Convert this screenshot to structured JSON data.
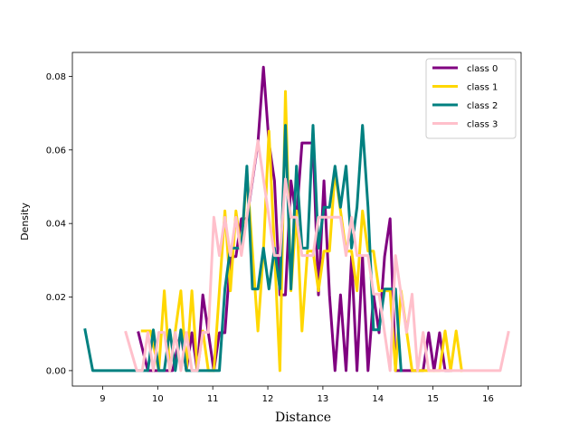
{
  "chart_data": {
    "type": "line",
    "title": "",
    "xlabel": "Distance",
    "ylabel": "Density",
    "xlim": [
      8.45,
      16.6
    ],
    "ylim": [
      -0.0042,
      0.0865
    ],
    "xticks": [
      9,
      10,
      11,
      12,
      13,
      14,
      15,
      16
    ],
    "xtick_labels": [
      "9",
      "10",
      "11",
      "12",
      "13",
      "14",
      "15",
      "16"
    ],
    "yticks": [
      0.0,
      0.02,
      0.04,
      0.06,
      0.08
    ],
    "ytick_labels": [
      "0.00",
      "0.02",
      "0.04",
      "0.06",
      "0.08"
    ],
    "grid": false,
    "legend_position": "top-right",
    "series": [
      {
        "name": "class 0",
        "color": "#800080",
        "x": [
          9.65,
          9.82,
          9.97,
          10.12,
          10.27,
          10.42,
          10.52,
          10.62,
          10.72,
          10.82,
          10.92,
          11.02,
          11.12,
          11.22,
          11.32,
          11.42,
          11.52,
          11.62,
          11.72,
          11.82,
          11.92,
          12.02,
          12.12,
          12.22,
          12.32,
          12.42,
          12.52,
          12.62,
          12.72,
          12.82,
          12.92,
          13.02,
          13.12,
          13.22,
          13.32,
          13.42,
          13.52,
          13.62,
          13.72,
          13.82,
          13.92,
          14.02,
          14.12,
          14.22,
          14.32,
          14.42,
          14.52,
          14.62,
          14.72,
          14.82,
          14.92,
          15.02,
          15.12,
          15.22,
          15.32
        ],
        "y": [
          0.0103,
          0.0,
          0.0,
          0.0,
          0.0,
          0.0103,
          0.0,
          0.0103,
          0.0,
          0.0206,
          0.0103,
          0.0,
          0.0103,
          0.0103,
          0.031,
          0.031,
          0.0413,
          0.0413,
          0.0516,
          0.0619,
          0.0825,
          0.0619,
          0.0516,
          0.0206,
          0.0206,
          0.0516,
          0.0413,
          0.0619,
          0.0619,
          0.0619,
          0.0206,
          0.0516,
          0.0206,
          0.0,
          0.0206,
          0.0,
          0.031,
          0.0,
          0.031,
          0.0,
          0.0206,
          0.0103,
          0.031,
          0.0413,
          0.0,
          0.0,
          0.0,
          0.0,
          0.0,
          0.0,
          0.0103,
          0.0,
          0.0103,
          0.0,
          0.0
        ]
      },
      {
        "name": "class 1",
        "color": "#FFD700",
        "x": [
          9.72,
          9.87,
          10.02,
          10.12,
          10.22,
          10.32,
          10.42,
          10.52,
          10.62,
          10.72,
          10.82,
          10.92,
          11.02,
          11.12,
          11.22,
          11.32,
          11.42,
          11.52,
          11.62,
          11.72,
          11.82,
          11.92,
          12.02,
          12.12,
          12.22,
          12.32,
          12.42,
          12.52,
          12.62,
          12.72,
          12.82,
          12.92,
          13.02,
          13.12,
          13.22,
          13.32,
          13.42,
          13.52,
          13.62,
          13.72,
          13.82,
          13.92,
          14.02,
          14.12,
          14.22,
          14.32,
          14.42,
          14.52,
          14.62,
          14.72,
          14.82,
          14.92,
          15.02,
          15.12,
          15.22,
          15.32,
          15.42,
          15.52
        ],
        "y": [
          0.0108,
          0.0108,
          0.0,
          0.0217,
          0.0,
          0.0108,
          0.0217,
          0.0,
          0.0217,
          0.0,
          0.0108,
          0.0,
          0.0,
          0.0217,
          0.0434,
          0.0217,
          0.0434,
          0.0325,
          0.0542,
          0.0325,
          0.0108,
          0.0325,
          0.0651,
          0.0325,
          0.0,
          0.0759,
          0.0217,
          0.0434,
          0.0108,
          0.0325,
          0.0325,
          0.0217,
          0.0325,
          0.0325,
          0.0542,
          0.0434,
          0.0325,
          0.0325,
          0.0217,
          0.0434,
          0.0325,
          0.0325,
          0.0217,
          0.0217,
          0.0217,
          0.0,
          0.0217,
          0.0108,
          0.0,
          0.0,
          0.0,
          0.0,
          0.0,
          0.0,
          0.0108,
          0.0,
          0.0108,
          0.0
        ]
      },
      {
        "name": "class 2",
        "color": "#008080",
        "x": [
          8.68,
          8.82,
          9.02,
          9.22,
          9.42,
          9.62,
          9.82,
          9.92,
          10.02,
          10.12,
          10.22,
          10.32,
          10.42,
          10.52,
          10.62,
          10.72,
          10.82,
          10.92,
          11.02,
          11.12,
          11.22,
          11.32,
          11.42,
          11.52,
          11.62,
          11.72,
          11.82,
          11.92,
          12.02,
          12.12,
          12.22,
          12.32,
          12.42,
          12.52,
          12.62,
          12.72,
          12.82,
          12.92,
          13.02,
          13.12,
          13.22,
          13.32,
          13.42,
          13.52,
          13.62,
          13.72,
          13.82,
          13.92,
          14.02,
          14.12,
          14.22,
          14.32,
          14.42
        ],
        "y": [
          0.0111,
          0.0,
          0.0,
          0.0,
          0.0,
          0.0,
          0.0,
          0.0111,
          0.0,
          0.0,
          0.0111,
          0.0,
          0.0111,
          0.0,
          0.0,
          0.0,
          0.0,
          0.0,
          0.0,
          0.0,
          0.0222,
          0.0333,
          0.0333,
          0.0333,
          0.0556,
          0.0222,
          0.0222,
          0.0333,
          0.0222,
          0.0333,
          0.0222,
          0.0667,
          0.0222,
          0.0556,
          0.0333,
          0.0333,
          0.0667,
          0.0333,
          0.0444,
          0.0444,
          0.0556,
          0.0444,
          0.0556,
          0.0333,
          0.0444,
          0.0667,
          0.0444,
          0.0111,
          0.0111,
          0.0222,
          0.0222,
          0.0222,
          0.0
        ]
      },
      {
        "name": "class 3",
        "color": "#FFC0CB",
        "x": [
          9.42,
          9.62,
          9.72,
          9.82,
          9.92,
          10.02,
          10.12,
          10.22,
          10.32,
          10.42,
          10.52,
          10.62,
          10.72,
          10.82,
          10.92,
          11.02,
          11.12,
          11.22,
          11.32,
          11.42,
          11.52,
          11.62,
          11.72,
          11.82,
          11.92,
          12.02,
          12.12,
          12.22,
          12.32,
          12.42,
          12.52,
          12.62,
          12.72,
          12.82,
          12.92,
          13.02,
          13.12,
          13.22,
          13.32,
          13.42,
          13.52,
          13.62,
          13.72,
          13.82,
          13.92,
          14.02,
          14.12,
          14.22,
          14.32,
          14.42,
          14.52,
          14.62,
          14.72,
          14.82,
          14.92,
          15.02,
          15.12,
          15.22,
          15.42,
          15.62,
          15.82,
          16.02,
          16.22,
          16.37
        ],
        "y": [
          0.0104,
          0.0,
          0.0,
          0.0104,
          0.0,
          0.0104,
          0.0104,
          0.0,
          0.0104,
          0.0,
          0.0104,
          0.0,
          0.0,
          0.0104,
          0.0104,
          0.0417,
          0.0313,
          0.0417,
          0.0313,
          0.0417,
          0.0313,
          0.0417,
          0.0521,
          0.0625,
          0.0521,
          0.0417,
          0.0313,
          0.0313,
          0.0521,
          0.0417,
          0.0417,
          0.0313,
          0.0313,
          0.0313,
          0.0417,
          0.0417,
          0.0417,
          0.0417,
          0.0417,
          0.0313,
          0.0417,
          0.0313,
          0.0313,
          0.0313,
          0.0208,
          0.0208,
          0.0104,
          0.0,
          0.0313,
          0.0208,
          0.0104,
          0.0208,
          0.0,
          0.0104,
          0.0,
          0.0,
          0.0,
          0.0,
          0.0,
          0.0,
          0.0,
          0.0,
          0.0,
          0.0104
        ]
      }
    ]
  }
}
